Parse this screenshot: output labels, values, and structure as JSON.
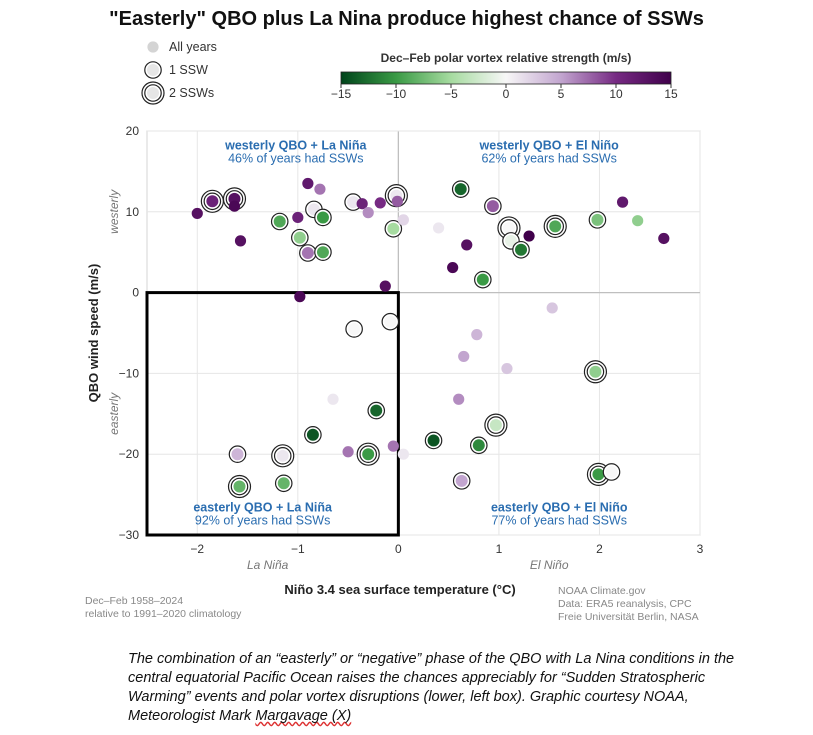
{
  "page": {
    "title": "\"Easterly\" QBO plus La Nina produce highest chance of SSWs",
    "caption_main": "The combination of an “easterly” or “negative” phase of the QBO with La Nina conditions in the central equatorial Pacific Ocean raises the chances appreciably for “Sudden Stratospheric Warming” events and polar vortex disruptions (lower, left box). Graphic courtesy NOAA, Meteorologist Mark ",
    "caption_tail": "Margavage (X)"
  },
  "chart_data": {
    "type": "scatter",
    "xlabel": "Niño 3.4 sea surface temperature (°C)",
    "ylabel": "QBO wind speed (m/s)",
    "xlim": [
      -2.5,
      3
    ],
    "ylim": [
      -30,
      20
    ],
    "x_ticks": [
      -2,
      -1,
      0,
      1,
      2,
      3
    ],
    "y_ticks": [
      -30,
      -20,
      -10,
      0,
      10,
      20
    ],
    "x_side_labels": {
      "negative": "La Niña",
      "positive": "El Niño"
    },
    "y_side_labels": {
      "positive": "westerly",
      "negative": "easterly"
    },
    "legend": {
      "items": [
        {
          "label": "All years",
          "ssw": 0
        },
        {
          "label": "1 SSW",
          "ssw": 1
        },
        {
          "label": "2 SSWs",
          "ssw": 2
        }
      ]
    },
    "colorbar": {
      "title": "Dec–Feb polar vortex relative strength (m/s)",
      "range": [
        -15,
        15
      ],
      "ticks": [
        -15,
        -10,
        -5,
        0,
        5,
        10,
        15
      ],
      "colors": [
        "#00441b",
        "#3a9a45",
        "#a6dba0",
        "#f7f7f7",
        "#c2a5cf",
        "#762a83",
        "#40004b"
      ]
    },
    "quadrants": [
      {
        "title": "westerly QBO + La Niña",
        "stat": "46% of years had SSWs",
        "position": "top-left"
      },
      {
        "title": "westerly QBO + El Niño",
        "stat": "62% of years had SSWs",
        "position": "top-right"
      },
      {
        "title": "easterly QBO + La Niña",
        "stat": "92% of years had SSWs",
        "position": "bottom-left"
      },
      {
        "title": "easterly QBO + El Niño",
        "stat": "77% of years had SSWs",
        "position": "bottom-right"
      }
    ],
    "highlight_box": {
      "x": [
        -2.5,
        0
      ],
      "y": [
        -30,
        0
      ]
    },
    "points": [
      {
        "x": -2.0,
        "y": 9.8,
        "v": 13,
        "ssw": 0
      },
      {
        "x": -1.85,
        "y": 11.3,
        "v": 11,
        "ssw": 2
      },
      {
        "x": -1.63,
        "y": 11.6,
        "v": 13,
        "ssw": 2
      },
      {
        "x": -1.63,
        "y": 10.7,
        "v": 14,
        "ssw": 0
      },
      {
        "x": -1.57,
        "y": 6.4,
        "v": 13,
        "ssw": 0
      },
      {
        "x": -1.18,
        "y": 8.8,
        "v": -9,
        "ssw": 1
      },
      {
        "x": -1.0,
        "y": 9.3,
        "v": 11,
        "ssw": 0
      },
      {
        "x": -0.98,
        "y": 6.8,
        "v": -6,
        "ssw": 1
      },
      {
        "x": -0.9,
        "y": 13.5,
        "v": 12,
        "ssw": 0
      },
      {
        "x": -0.9,
        "y": 4.9,
        "v": 7,
        "ssw": 1
      },
      {
        "x": -0.84,
        "y": 10.3,
        "v": 1,
        "ssw": 1
      },
      {
        "x": -0.78,
        "y": 12.8,
        "v": 7,
        "ssw": 0
      },
      {
        "x": -0.75,
        "y": 9.3,
        "v": -10,
        "ssw": 1
      },
      {
        "x": -0.75,
        "y": 5.0,
        "v": -9,
        "ssw": 1
      },
      {
        "x": -0.45,
        "y": 11.2,
        "v": 1,
        "ssw": 1
      },
      {
        "x": -0.36,
        "y": 11.0,
        "v": 11,
        "ssw": 0
      },
      {
        "x": -0.3,
        "y": 9.9,
        "v": 6,
        "ssw": 0
      },
      {
        "x": -0.18,
        "y": 11.1,
        "v": 10,
        "ssw": 0
      },
      {
        "x": -0.05,
        "y": 7.9,
        "v": -5,
        "ssw": 1
      },
      {
        "x": -0.02,
        "y": 12.0,
        "v": 1,
        "ssw": 2
      },
      {
        "x": -0.01,
        "y": 11.3,
        "v": 8,
        "ssw": 0
      },
      {
        "x": 0.05,
        "y": 9.0,
        "v": 2,
        "ssw": 0
      },
      {
        "x": 0.4,
        "y": 8.0,
        "v": 1,
        "ssw": 0
      },
      {
        "x": 0.62,
        "y": 12.8,
        "v": -13,
        "ssw": 1
      },
      {
        "x": 0.54,
        "y": 3.1,
        "v": 14,
        "ssw": 0
      },
      {
        "x": 0.68,
        "y": 5.9,
        "v": 13,
        "ssw": 0
      },
      {
        "x": 0.84,
        "y": 1.6,
        "v": -10,
        "ssw": 1
      },
      {
        "x": 0.94,
        "y": 10.7,
        "v": 8,
        "ssw": 1
      },
      {
        "x": 1.1,
        "y": 8.0,
        "v": 0,
        "ssw": 2
      },
      {
        "x": 1.12,
        "y": 6.4,
        "v": -1,
        "ssw": 1
      },
      {
        "x": 1.22,
        "y": 5.3,
        "v": -12,
        "ssw": 1
      },
      {
        "x": 1.3,
        "y": 7.0,
        "v": 15,
        "ssw": 0
      },
      {
        "x": 1.56,
        "y": 8.2,
        "v": -9,
        "ssw": 2
      },
      {
        "x": 1.98,
        "y": 9.0,
        "v": -7,
        "ssw": 1
      },
      {
        "x": 2.23,
        "y": 11.2,
        "v": 12,
        "ssw": 0
      },
      {
        "x": 2.38,
        "y": 8.9,
        "v": -6,
        "ssw": 0
      },
      {
        "x": 2.64,
        "y": 6.7,
        "v": 13,
        "ssw": 0
      },
      {
        "x": 0.78,
        "y": -5.2,
        "v": 4,
        "ssw": 0
      },
      {
        "x": 0.65,
        "y": -7.9,
        "v": 5,
        "ssw": 0
      },
      {
        "x": 1.08,
        "y": -9.4,
        "v": 3,
        "ssw": 0
      },
      {
        "x": 1.53,
        "y": -1.9,
        "v": 3,
        "ssw": 0
      },
      {
        "x": 0.6,
        "y": -13.2,
        "v": 6,
        "ssw": 0
      },
      {
        "x": 0.97,
        "y": -16.4,
        "v": -3,
        "ssw": 2
      },
      {
        "x": 0.35,
        "y": -18.3,
        "v": -14,
        "ssw": 1
      },
      {
        "x": 0.8,
        "y": -18.9,
        "v": -11,
        "ssw": 1
      },
      {
        "x": 1.96,
        "y": -9.8,
        "v": -6,
        "ssw": 2
      },
      {
        "x": 0.63,
        "y": -23.3,
        "v": 5,
        "ssw": 1
      },
      {
        "x": 1.99,
        "y": -22.5,
        "v": -10,
        "ssw": 2
      },
      {
        "x": 2.12,
        "y": -22.2,
        "v": 0,
        "ssw": 1
      },
      {
        "x": 0.05,
        "y": -20.0,
        "v": 1,
        "ssw": 0
      },
      {
        "x": -0.98,
        "y": -0.5,
        "v": 14,
        "ssw": 0
      },
      {
        "x": -0.13,
        "y": 0.8,
        "v": 13,
        "ssw": 0
      },
      {
        "x": -0.44,
        "y": -4.5,
        "v": 0,
        "ssw": 1
      },
      {
        "x": -0.08,
        "y": -3.6,
        "v": 0,
        "ssw": 1
      },
      {
        "x": -0.65,
        "y": -13.2,
        "v": 1,
        "ssw": 0
      },
      {
        "x": -0.22,
        "y": -14.6,
        "v": -13,
        "ssw": 1
      },
      {
        "x": -0.85,
        "y": -17.6,
        "v": -14,
        "ssw": 1
      },
      {
        "x": -0.3,
        "y": -20.0,
        "v": -10,
        "ssw": 2
      },
      {
        "x": -0.5,
        "y": -19.7,
        "v": 7,
        "ssw": 0
      },
      {
        "x": -0.05,
        "y": -19.0,
        "v": 7,
        "ssw": 0
      },
      {
        "x": -1.6,
        "y": -20.0,
        "v": 4,
        "ssw": 1
      },
      {
        "x": -1.15,
        "y": -20.2,
        "v": 1,
        "ssw": 2
      },
      {
        "x": -1.58,
        "y": -24.0,
        "v": -8,
        "ssw": 2
      },
      {
        "x": -1.14,
        "y": -23.6,
        "v": -8,
        "ssw": 1
      }
    ],
    "notes_left": [
      "Dec–Feb 1958–2024",
      "relative to 1991–2020 climatology"
    ],
    "notes_right": [
      "NOAA Climate.gov",
      "Data: ERA5 reanalysis, CPC",
      "Freie Universität Berlin, NASA"
    ]
  }
}
